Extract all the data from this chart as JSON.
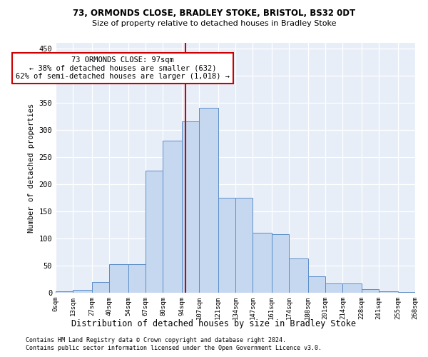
{
  "title1": "73, ORMONDS CLOSE, BRADLEY STOKE, BRISTOL, BS32 0DT",
  "title2": "Size of property relative to detached houses in Bradley Stoke",
  "xlabel": "Distribution of detached houses by size in Bradley Stoke",
  "ylabel": "Number of detached properties",
  "footnote1": "Contains HM Land Registry data © Crown copyright and database right 2024.",
  "footnote2": "Contains public sector information licensed under the Open Government Licence v3.0.",
  "annotation_title": "73 ORMONDS CLOSE: 97sqm",
  "annotation_line1": "← 38% of detached houses are smaller (632)",
  "annotation_line2": "62% of semi-detached houses are larger (1,018) →",
  "property_size": 97,
  "bar_color": "#c5d8f0",
  "bar_edge_color": "#5b8dc8",
  "vline_color": "#cc0000",
  "bg_color": "#e8eef8",
  "bins": [
    0,
    13,
    27,
    40,
    54,
    67,
    80,
    94,
    107,
    121,
    134,
    147,
    161,
    174,
    188,
    201,
    214,
    228,
    241,
    255,
    268
  ],
  "bin_labels": [
    "0sqm",
    "13sqm",
    "27sqm",
    "40sqm",
    "54sqm",
    "67sqm",
    "80sqm",
    "94sqm",
    "107sqm",
    "121sqm",
    "134sqm",
    "147sqm",
    "161sqm",
    "174sqm",
    "188sqm",
    "201sqm",
    "214sqm",
    "228sqm",
    "241sqm",
    "255sqm",
    "268sqm"
  ],
  "counts": [
    2,
    5,
    20,
    53,
    53,
    225,
    280,
    315,
    340,
    175,
    175,
    110,
    108,
    63,
    30,
    17,
    17,
    6,
    2,
    1
  ],
  "ylim": [
    0,
    460
  ],
  "yticks": [
    0,
    50,
    100,
    150,
    200,
    250,
    300,
    350,
    400,
    450
  ]
}
